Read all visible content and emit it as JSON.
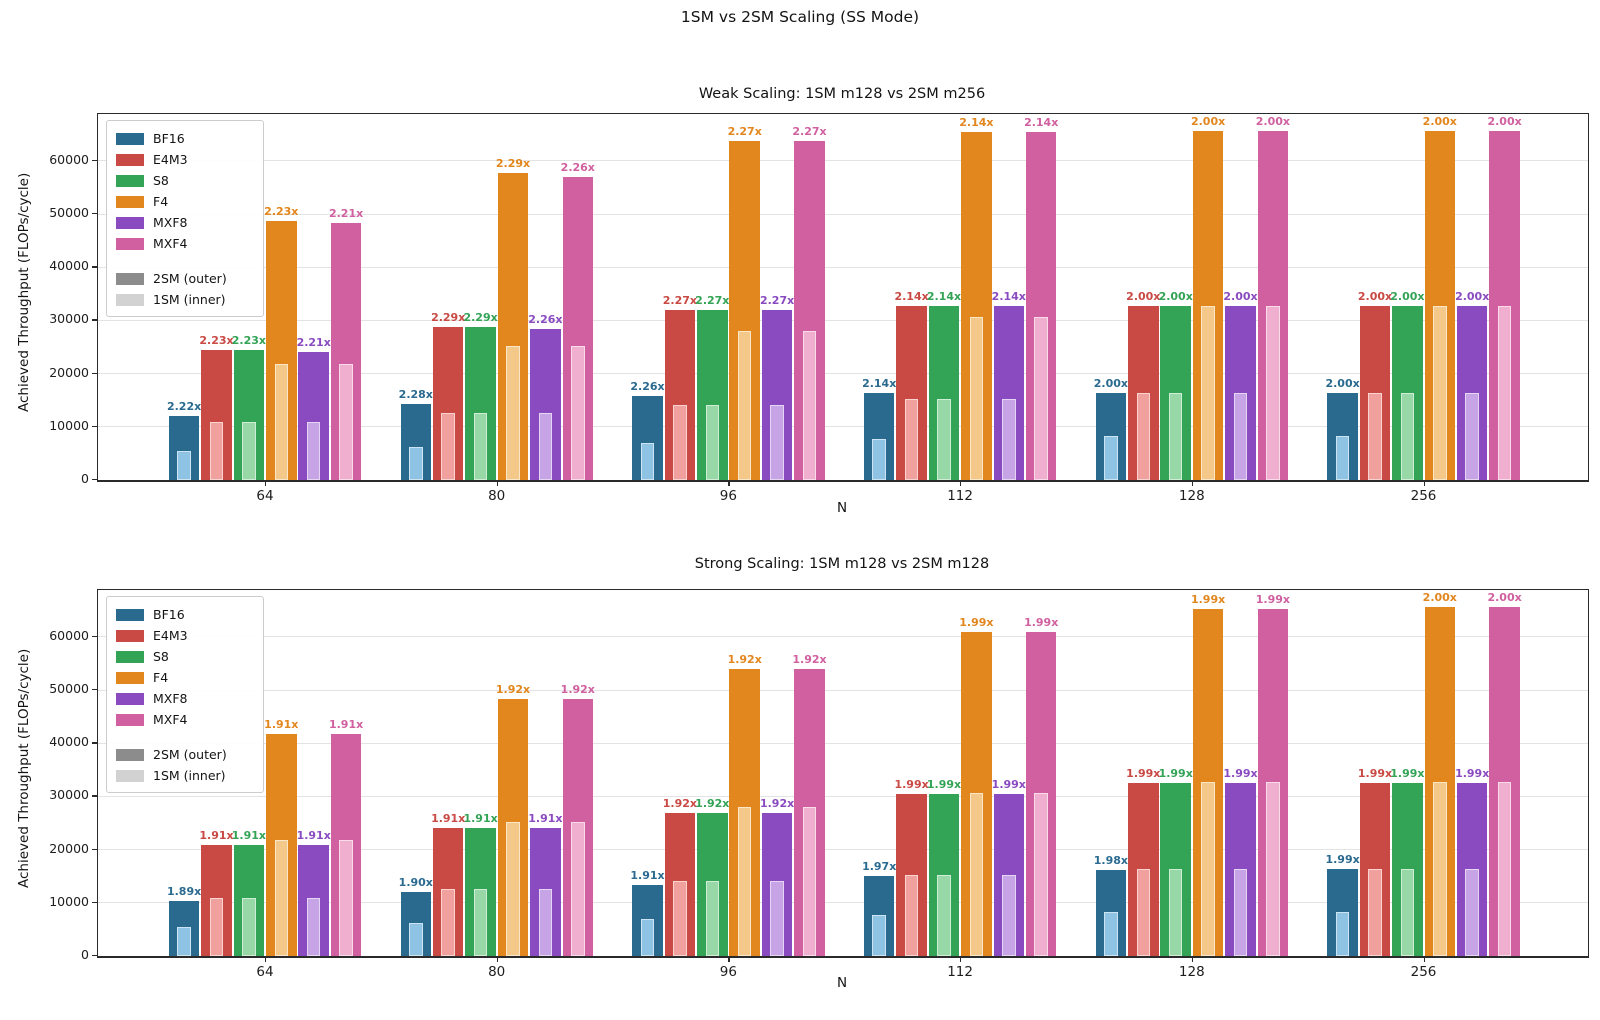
{
  "figure_title": "1SM vs 2SM Scaling (SS Mode)",
  "legend": {
    "outer_label": "2SM (outer)",
    "inner_label": "1SM (inner)",
    "outer_swatch_color": "#8c8c8c",
    "inner_swatch_color": "#d2d2d2"
  },
  "chart_data": [
    {
      "type": "bar",
      "title": "Weak Scaling: 1SM m128 vs 2SM m256",
      "xlabel": "N",
      "ylabel": "Achieved Throughput (FLOPs/cycle)",
      "categories": [
        "64",
        "80",
        "96",
        "112",
        "128",
        "256"
      ],
      "yticks": [
        0,
        10000,
        20000,
        30000,
        40000,
        50000,
        60000
      ],
      "ylim": [
        0,
        68813
      ],
      "grid": true,
      "legend_position": "upper-left",
      "series": [
        {
          "name": "BF16",
          "color": "#2a6a8f",
          "inner_color": "#8fc3e4",
          "outer_2sm": [
            12123,
            14366,
            15867,
            16360,
            16384,
            16384
          ],
          "inner_1sm": [
            5461,
            6301,
            7021,
            7645,
            8192,
            8192
          ],
          "labels": [
            "2.22x",
            "2.28x",
            "2.26x",
            "2.14x",
            "2.00x",
            "2.00x"
          ]
        },
        {
          "name": "E4M3",
          "color": "#c94944",
          "inner_color": "#f0a19d",
          "outer_2sm": [
            24358,
            28861,
            31878,
            32723,
            32768,
            32768
          ],
          "inner_1sm": [
            10923,
            12603,
            14043,
            15291,
            16384,
            16384
          ],
          "labels": [
            "2.23x",
            "2.29x",
            "2.27x",
            "2.14x",
            "2.00x",
            "2.00x"
          ]
        },
        {
          "name": "S8",
          "color": "#33a355",
          "inner_color": "#97d8a6",
          "outer_2sm": [
            24358,
            28861,
            31878,
            32723,
            32768,
            32768
          ],
          "inner_1sm": [
            10923,
            12603,
            14043,
            15291,
            16384,
            16384
          ],
          "labels": [
            "2.23x",
            "2.29x",
            "2.27x",
            "2.14x",
            "2.00x",
            "2.00x"
          ]
        },
        {
          "name": "F4",
          "color": "#e2861e",
          "inner_color": "#f4c888",
          "outer_2sm": [
            48714,
            57722,
            63755,
            65448,
            65536,
            65536
          ],
          "inner_1sm": [
            21845,
            25206,
            28086,
            30583,
            32768,
            32768
          ],
          "labels": [
            "2.23x",
            "2.29x",
            "2.27x",
            "2.14x",
            "2.00x",
            "2.00x"
          ]
        },
        {
          "name": "MXF8",
          "color": "#8a4bc1",
          "inner_color": "#c6a4e6",
          "outer_2sm": [
            24140,
            28483,
            31878,
            32723,
            32768,
            32768
          ],
          "inner_1sm": [
            10923,
            12603,
            14043,
            15291,
            16384,
            16384
          ],
          "labels": [
            "2.21x",
            "2.26x",
            "2.27x",
            "2.14x",
            "2.00x",
            "2.00x"
          ]
        },
        {
          "name": "MXF4",
          "color": "#d0609f",
          "inner_color": "#f1afd0",
          "outer_2sm": [
            48277,
            56966,
            63755,
            65448,
            65536,
            65536
          ],
          "inner_1sm": [
            21845,
            25206,
            28086,
            30583,
            32768,
            32768
          ],
          "labels": [
            "2.21x",
            "2.26x",
            "2.27x",
            "2.14x",
            "2.00x",
            "2.00x"
          ]
        }
      ]
    },
    {
      "type": "bar",
      "title": "Strong Scaling: 1SM m128 vs 2SM m128",
      "xlabel": "N",
      "ylabel": "Achieved Throughput (FLOPs/cycle)",
      "categories": [
        "64",
        "80",
        "96",
        "112",
        "128",
        "256"
      ],
      "yticks": [
        0,
        10000,
        20000,
        30000,
        40000,
        50000,
        60000
      ],
      "ylim": [
        0,
        68813
      ],
      "grid": true,
      "legend_position": "upper-left",
      "series": [
        {
          "name": "BF16",
          "color": "#2a6a8f",
          "inner_color": "#8fc3e4",
          "outer_2sm": [
            10321,
            11972,
            13410,
            15061,
            16220,
            16302
          ],
          "inner_1sm": [
            5461,
            6301,
            7021,
            7645,
            8192,
            8192
          ],
          "labels": [
            "1.89x",
            "1.90x",
            "1.91x",
            "1.97x",
            "1.98x",
            "1.99x"
          ]
        },
        {
          "name": "E4M3",
          "color": "#c94944",
          "inner_color": "#f0a19d",
          "outer_2sm": [
            20863,
            24072,
            26963,
            30429,
            32604,
            32604
          ],
          "inner_1sm": [
            10923,
            12603,
            14043,
            15291,
            16384,
            16384
          ],
          "labels": [
            "1.91x",
            "1.91x",
            "1.92x",
            "1.99x",
            "1.99x",
            "1.99x"
          ]
        },
        {
          "name": "S8",
          "color": "#33a355",
          "inner_color": "#97d8a6",
          "outer_2sm": [
            20863,
            24072,
            26963,
            30429,
            32604,
            32604
          ],
          "inner_1sm": [
            10923,
            12603,
            14043,
            15291,
            16384,
            16384
          ],
          "labels": [
            "1.91x",
            "1.91x",
            "1.92x",
            "1.99x",
            "1.99x",
            "1.99x"
          ]
        },
        {
          "name": "F4",
          "color": "#e2861e",
          "inner_color": "#f4c888",
          "outer_2sm": [
            41724,
            48396,
            53925,
            60860,
            65208,
            65536
          ],
          "inner_1sm": [
            21845,
            25206,
            28086,
            30583,
            32768,
            32768
          ],
          "labels": [
            "1.91x",
            "1.92x",
            "1.92x",
            "1.99x",
            "1.99x",
            "2.00x"
          ]
        },
        {
          "name": "MXF8",
          "color": "#8a4bc1",
          "inner_color": "#c6a4e6",
          "outer_2sm": [
            20863,
            24072,
            26963,
            30429,
            32604,
            32604
          ],
          "inner_1sm": [
            10923,
            12603,
            14043,
            15291,
            16384,
            16384
          ],
          "labels": [
            "1.91x",
            "1.91x",
            "1.92x",
            "1.99x",
            "1.99x",
            "1.99x"
          ]
        },
        {
          "name": "MXF4",
          "color": "#d0609f",
          "inner_color": "#f1afd0",
          "outer_2sm": [
            41724,
            48396,
            53925,
            60860,
            65208,
            65536
          ],
          "inner_1sm": [
            21845,
            25206,
            28086,
            30583,
            32768,
            32768
          ],
          "labels": [
            "1.91x",
            "1.92x",
            "1.92x",
            "1.99x",
            "1.99x",
            "2.00x"
          ]
        }
      ]
    }
  ]
}
